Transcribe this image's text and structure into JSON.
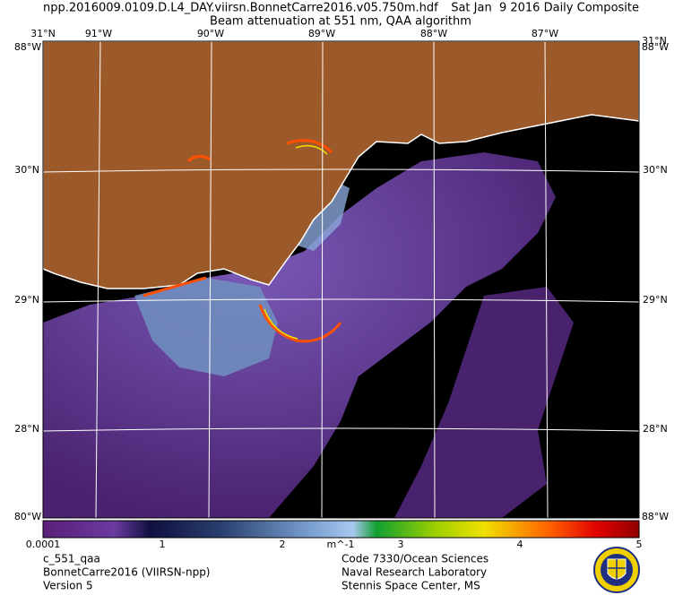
{
  "header": {
    "filename": "npp.2016009.0109.D.L4_DAY.viirsn.BonnetCarre2016.v05.750m.hdf",
    "date": "Sat Jan  9 2016 Daily Composite",
    "product": "Beam attenuation at 551 nm, QAA algorithm"
  },
  "map": {
    "top_labels": [
      "31°N",
      "91°W",
      "90°W",
      "89°W",
      "88°W",
      "87°W",
      "31°N"
    ],
    "corner_labels": [
      "88°W",
      "88°W",
      "80°W",
      "88°W"
    ],
    "left_labels": [
      "30°N",
      "29°N",
      "28°N"
    ],
    "right_labels": [
      "30°N",
      "29°N",
      "28°N"
    ]
  },
  "colorbar": {
    "labels": [
      "0.0001",
      "1",
      "2",
      "m^-1",
      "3",
      "4",
      "5"
    ]
  },
  "footer": {
    "left": [
      "c_551_qaa",
      "BonnetCarre2016 (VIIRSN-npp)",
      "Version 5"
    ],
    "right": [
      "Code 7330/Ocean Sciences",
      "Naval Research Laboratory",
      "Stennis Space Center, MS"
    ]
  }
}
